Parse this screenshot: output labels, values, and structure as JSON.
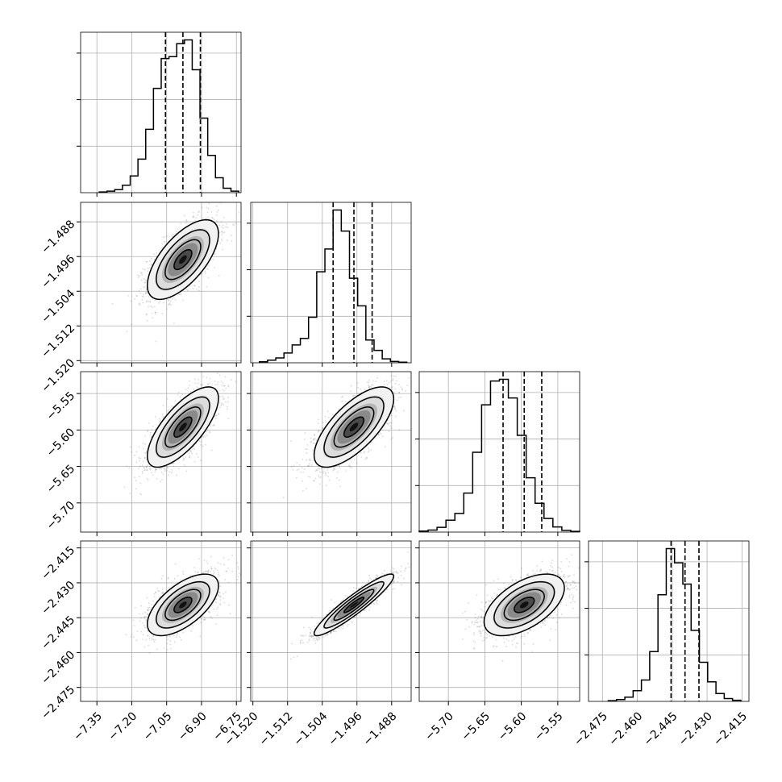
{
  "chart_data": {
    "type": "corner",
    "parameters": [
      {
        "ticks": [
          "−7.35",
          "−7.20",
          "−7.05",
          "−6.90",
          "−6.75"
        ],
        "tick_values": [
          -7.35,
          -7.2,
          -7.05,
          -6.9,
          -6.75
        ],
        "range": [
          -7.42,
          -6.73
        ],
        "mean": -6.98,
        "std": 0.075,
        "quantiles": [
          -7.055,
          -6.98,
          -6.905
        ]
      },
      {
        "ticks": [
          "−1.520",
          "−1.512",
          "−1.504",
          "−1.496",
          "−1.488"
        ],
        "tick_values": [
          -1.52,
          -1.512,
          -1.504,
          -1.496,
          -1.488
        ],
        "range": [
          -1.5205,
          -1.4835
        ],
        "mean": -1.4967,
        "std": 0.0045,
        "quantiles": [
          -1.5015,
          -1.4967,
          -1.4925
        ]
      },
      {
        "ticks": [
          "−5.70",
          "−5.65",
          "−5.60",
          "−5.55"
        ],
        "tick_values": [
          -5.7,
          -5.65,
          -5.6,
          -5.55
        ],
        "range": [
          -5.74,
          -5.52
        ],
        "mean": -5.596,
        "std": 0.027,
        "quantiles": [
          -5.625,
          -5.596,
          -5.572
        ]
      },
      {
        "ticks": [
          "−2.475",
          "−2.460",
          "−2.445",
          "−2.430",
          "−2.415"
        ],
        "tick_values": [
          -2.475,
          -2.46,
          -2.445,
          -2.43,
          -2.415
        ],
        "range": [
          -2.481,
          -2.412
        ],
        "mean": -2.4395,
        "std": 0.0065,
        "quantiles": [
          -2.4455,
          -2.4395,
          -2.4335
        ]
      }
    ],
    "histograms": [
      {
        "param": 0,
        "bin_edges_range": [
          -7.34,
          -6.74
        ],
        "counts": [
          2,
          4,
          8,
          20,
          45,
          90,
          170,
          280,
          360,
          365,
          400,
          410,
          330,
          200,
          100,
          40,
          12,
          4
        ]
      },
      {
        "param": 1,
        "bin_edges_range": [
          -1.5185,
          -1.4845
        ],
        "counts": [
          3,
          8,
          15,
          30,
          55,
          75,
          140,
          280,
          350,
          470,
          405,
          260,
          175,
          70,
          38,
          12,
          4,
          2
        ]
      },
      {
        "param": 2,
        "bin_edges_range": [
          -5.74,
          -5.52
        ],
        "counts": [
          3,
          6,
          14,
          35,
          55,
          115,
          235,
          375,
          445,
          450,
          395,
          285,
          160,
          85,
          40,
          15,
          5,
          2
        ]
      },
      {
        "param": 3,
        "bin_edges_range": [
          -2.4725,
          -2.4155
        ],
        "counts": [
          2,
          5,
          12,
          30,
          60,
          140,
          300,
          430,
          390,
          330,
          200,
          110,
          55,
          22,
          8,
          3
        ]
      }
    ],
    "pairs": [
      {
        "x": 0,
        "y": 1,
        "correlation": 0.65
      },
      {
        "x": 0,
        "y": 2,
        "correlation": 0.72
      },
      {
        "x": 1,
        "y": 2,
        "correlation": 0.7
      },
      {
        "x": 0,
        "y": 3,
        "correlation": 0.62
      },
      {
        "x": 1,
        "y": 3,
        "correlation": 0.93
      },
      {
        "x": 2,
        "y": 3,
        "correlation": 0.55
      }
    ],
    "contour_levels_sigma": [
      0.5,
      1.0,
      1.5,
      2.0
    ],
    "grid": true
  }
}
